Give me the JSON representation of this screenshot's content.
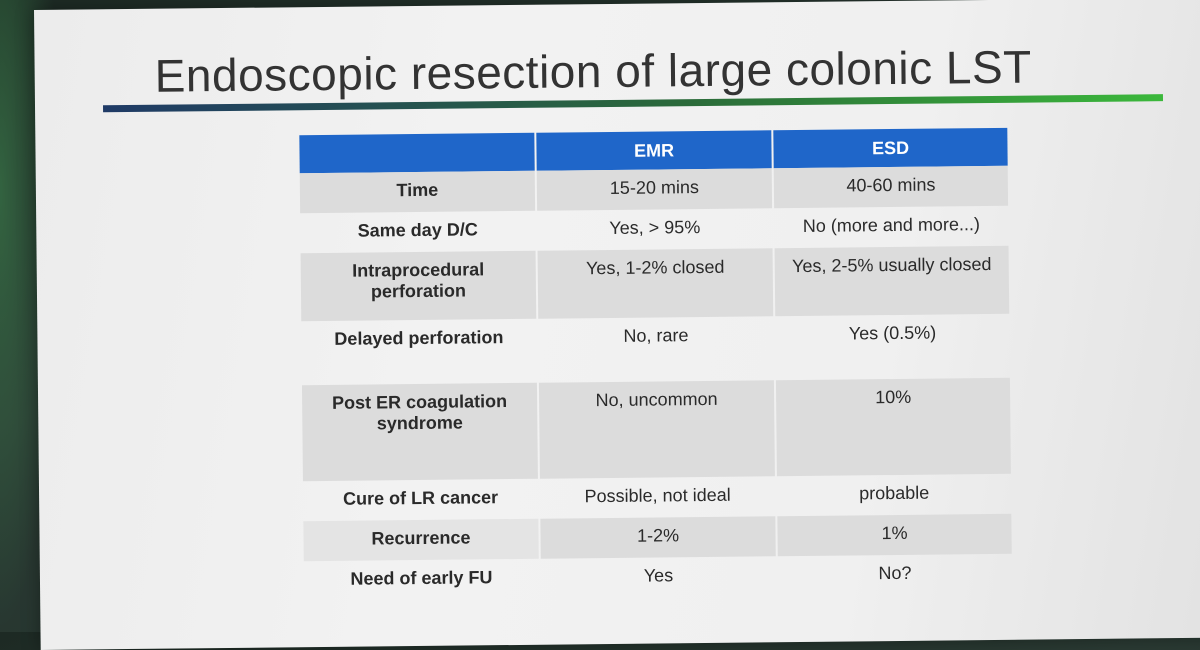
{
  "title": "Endoscopic resection of large colonic LST",
  "table": {
    "headers": [
      "",
      "EMR",
      "ESD"
    ],
    "rows": [
      {
        "label": "Time",
        "emr": "15-20 mins",
        "esd": "40-60 mins"
      },
      {
        "label": "Same day D/C",
        "emr": "Yes, > 95%",
        "esd": "No (more and more...)"
      },
      {
        "label": "Intraprocedural perforation",
        "emr": "Yes, 1-2% closed",
        "esd": "Yes, 2-5% usually closed"
      },
      {
        "label": "Delayed perforation",
        "emr": "No, rare",
        "esd": "Yes (0.5%)"
      },
      {
        "label": "Post ER coagulation syndrome",
        "emr": "No, uncommon",
        "esd": "10%"
      },
      {
        "label": "Cure of LR cancer",
        "emr": "Possible, not ideal",
        "esd": "probable"
      },
      {
        "label": "Recurrence",
        "emr": "1-2%",
        "esd": "1%"
      },
      {
        "label": "Need of early FU",
        "emr": "Yes",
        "esd": "No?"
      }
    ]
  },
  "colors": {
    "header_blue": "#1f66c9",
    "row_shade": "#dcdcdc",
    "rule_start": "#1f3a66",
    "rule_end": "#3bb83b"
  }
}
